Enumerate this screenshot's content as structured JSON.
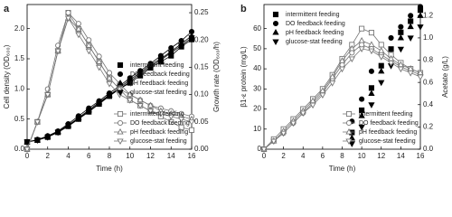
{
  "chart_data": [
    {
      "type": "line",
      "panel_label": "a",
      "xlabel": "Time (h)",
      "ylabel": "Cell density (OD₆₀₀)",
      "y2label": "Growth rate (OD₆₀₀/h)",
      "x": [
        0,
        1,
        2,
        3,
        4,
        5,
        6,
        7,
        8,
        9,
        10,
        11,
        12,
        13,
        14,
        15,
        16
      ],
      "xlim": [
        0,
        16
      ],
      "xticks": [
        0,
        2,
        4,
        6,
        8,
        10,
        12,
        14,
        16
      ],
      "ylim": [
        0,
        2.4
      ],
      "yticks": [
        {
          "value": 0,
          "label": "0.0"
        },
        {
          "value": 0.5,
          "label": "0.5"
        },
        {
          "value": 1,
          "label": "1.0"
        },
        {
          "value": 1.5,
          "label": "1.5"
        },
        {
          "value": 2,
          "label": "2.0"
        }
      ],
      "y2lim": [
        0,
        0.265
      ],
      "y2ticks": [
        {
          "value": 0,
          "label": "0.00"
        },
        0.05,
        {
          "value": 0.1,
          "label": "0.10"
        },
        0.15,
        {
          "value": 0.2,
          "label": "0.20"
        },
        0.25
      ],
      "legend_loc": {
        "filled": "center right",
        "open": "lower right"
      },
      "series": [
        {
          "name": "intermittent feeding",
          "marker": "square",
          "filled": true,
          "color": "#000000",
          "line": true,
          "values": [
            0.12,
            0.15,
            0.2,
            0.28,
            0.38,
            0.5,
            0.62,
            0.75,
            0.88,
            1.0,
            1.1,
            1.22,
            1.35,
            1.45,
            1.55,
            1.7,
            1.82
          ]
        },
        {
          "name": "DO feedback feeding",
          "marker": "circle",
          "filled": true,
          "color": "#000000",
          "line": true,
          "values": [
            0.12,
            0.16,
            0.22,
            0.3,
            0.42,
            0.55,
            0.68,
            0.8,
            0.93,
            1.05,
            1.18,
            1.3,
            1.42,
            1.55,
            1.68,
            1.8,
            1.95
          ]
        },
        {
          "name": "pH feedback feeding",
          "marker": "triangle-up",
          "filled": true,
          "color": "#000000",
          "line": true,
          "values": [
            0.12,
            0.15,
            0.21,
            0.29,
            0.4,
            0.52,
            0.65,
            0.78,
            0.9,
            1.02,
            1.15,
            1.27,
            1.4,
            1.5,
            1.62,
            1.75,
            1.88
          ]
        },
        {
          "name": "glucose-stat feeding",
          "marker": "triangle-down",
          "filled": true,
          "color": "#000000",
          "line": true,
          "values": [
            0.12,
            0.15,
            0.2,
            0.28,
            0.39,
            0.51,
            0.63,
            0.76,
            0.89,
            1.0,
            1.12,
            1.25,
            1.37,
            1.48,
            1.6,
            1.72,
            1.85
          ]
        },
        {
          "name": "intermittent feeding",
          "marker": "square",
          "filled": false,
          "color": "#777777",
          "line": true,
          "axis": "y2",
          "values": [
            0,
            0.05,
            0.1,
            0.18,
            0.25,
            0.22,
            0.19,
            0.16,
            0.13,
            0.11,
            0.09,
            0.08,
            0.07,
            0.06,
            0.05,
            0.04,
            0.035
          ]
        },
        {
          "name": "DO feedback feeding",
          "marker": "circle",
          "filled": false,
          "color": "#777777",
          "line": true,
          "axis": "y2",
          "values": [
            0,
            0.05,
            0.11,
            0.19,
            0.25,
            0.23,
            0.2,
            0.17,
            0.14,
            0.12,
            0.1,
            0.09,
            0.08,
            0.075,
            0.07,
            0.065,
            0.06
          ]
        },
        {
          "name": "pH feedback feeding",
          "marker": "triangle-up",
          "filled": false,
          "color": "#777777",
          "line": true,
          "axis": "y2",
          "values": [
            0,
            0.05,
            0.1,
            0.18,
            0.24,
            0.22,
            0.19,
            0.16,
            0.13,
            0.11,
            0.1,
            0.09,
            0.08,
            0.07,
            0.065,
            0.06,
            0.055
          ]
        },
        {
          "name": "glucose-stat feeding",
          "marker": "triangle-down",
          "filled": false,
          "color": "#777777",
          "line": true,
          "axis": "y2",
          "values": [
            0,
            0.05,
            0.1,
            0.18,
            0.24,
            0.21,
            0.18,
            0.15,
            0.12,
            0.1,
            0.09,
            0.08,
            0.07,
            0.065,
            0.06,
            0.055,
            0.05
          ]
        }
      ]
    },
    {
      "type": "line",
      "panel_label": "b",
      "xlabel": "Time (h)",
      "ylabel": "β1-ε protein (mg/L)",
      "y2label": "Acetate (g/L)",
      "x": [
        0,
        1,
        2,
        3,
        4,
        5,
        6,
        7,
        8,
        9,
        10,
        11,
        12,
        13,
        14,
        15,
        16
      ],
      "xlim": [
        0,
        16
      ],
      "xticks": [
        0,
        2,
        4,
        6,
        8,
        10,
        12,
        14,
        16
      ],
      "ylim": [
        0,
        72
      ],
      "yticks": [
        0,
        10,
        20,
        30,
        40,
        50,
        60
      ],
      "y2lim": [
        0,
        1.3
      ],
      "y2ticks": [
        {
          "value": 0,
          "label": "0.0"
        },
        0.2,
        0.4,
        0.6,
        0.8,
        {
          "value": 1,
          "label": "1.0"
        },
        1.2
      ],
      "legend_loc": {
        "filled": "upper left",
        "open": "lower right"
      },
      "series": [
        {
          "name": "intermittent feeding",
          "marker": "square",
          "filled": true,
          "color": "#000000",
          "line": false,
          "axis": "y2",
          "values": [
            null,
            null,
            null,
            null,
            null,
            null,
            null,
            null,
            null,
            0.15,
            0.35,
            0.55,
            0.75,
            0.9,
            1.05,
            1.15,
            1.25
          ]
        },
        {
          "name": "DO feedback feeding",
          "marker": "circle",
          "filled": true,
          "color": "#000000",
          "line": false,
          "axis": "y2",
          "values": [
            null,
            null,
            null,
            null,
            null,
            null,
            null,
            null,
            null,
            0.25,
            0.45,
            0.7,
            0.85,
            1.0,
            1.1,
            1.2,
            1.28
          ]
        },
        {
          "name": "pH feedback feeding",
          "marker": "triangle-up",
          "filled": true,
          "color": "#000000",
          "line": false,
          "axis": "y2",
          "values": [
            null,
            null,
            null,
            null,
            null,
            null,
            null,
            null,
            null,
            0.1,
            0.3,
            0.5,
            0.7,
            0.85,
            1.0,
            1.1,
            1.2
          ]
        },
        {
          "name": "glucose-stat feeding",
          "marker": "triangle-down",
          "filled": true,
          "color": "#000000",
          "line": false,
          "axis": "y2",
          "values": [
            null,
            null,
            null,
            null,
            null,
            null,
            null,
            null,
            null,
            0.05,
            0.2,
            0.4,
            0.6,
            0.75,
            0.9,
            1.0,
            1.1
          ]
        },
        {
          "name": "intermittent feeding",
          "marker": "square",
          "filled": false,
          "color": "#777777",
          "line": true,
          "values": [
            0,
            5,
            10,
            15,
            20,
            25,
            30,
            37,
            45,
            52,
            60,
            58,
            52,
            47,
            43,
            40,
            38
          ]
        },
        {
          "name": "DO feedback feeding",
          "marker": "circle",
          "filled": false,
          "color": "#777777",
          "line": true,
          "values": [
            0,
            4,
            8,
            13,
            18,
            23,
            28,
            35,
            42,
            48,
            52,
            50,
            47,
            44,
            41,
            39,
            37
          ]
        },
        {
          "name": "pH feedback feeding",
          "marker": "triangle-up",
          "filled": false,
          "color": "#777777",
          "line": true,
          "values": [
            0,
            4,
            9,
            14,
            19,
            24,
            29,
            36,
            44,
            50,
            54,
            52,
            49,
            45,
            42,
            40,
            38
          ]
        },
        {
          "name": "glucose-stat feeding",
          "marker": "triangle-down",
          "filled": false,
          "color": "#777777",
          "line": true,
          "values": [
            0,
            4,
            8,
            13,
            18,
            22,
            27,
            33,
            40,
            45,
            50,
            49,
            46,
            43,
            40,
            38,
            36
          ]
        }
      ]
    }
  ]
}
